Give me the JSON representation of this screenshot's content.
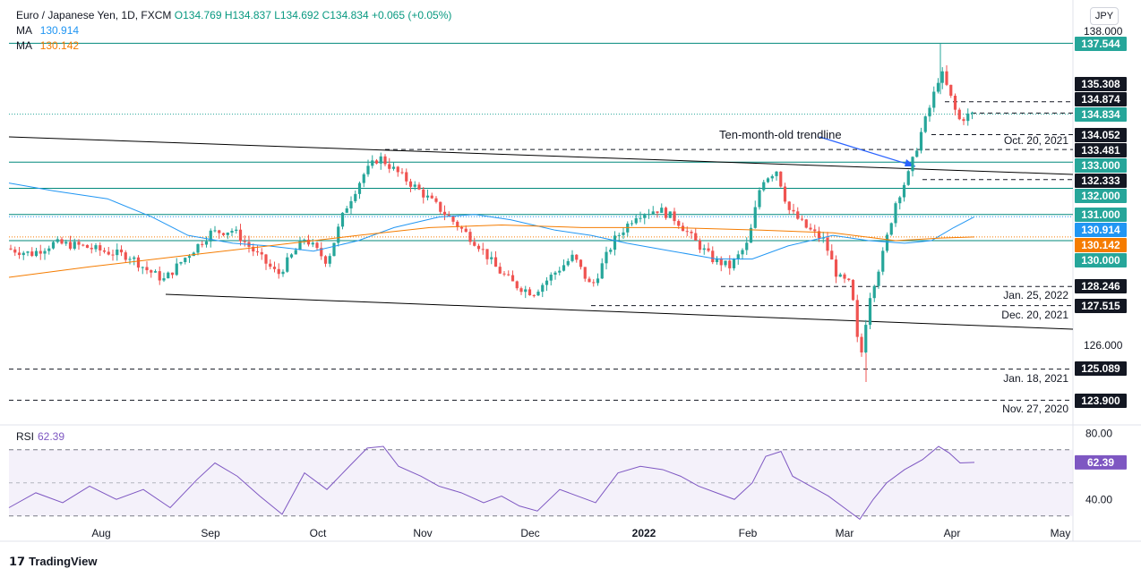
{
  "header": {
    "symbol": "Euro / Japanese Yen, 1D, FXCM",
    "ohlc": "O134.769  H134.837  L134.692  C134.834  +0.065 (+0.05%)",
    "ma1_label": "MA",
    "ma1_value": "130.914",
    "ma2_label": "MA",
    "ma2_value": "130.142"
  },
  "currency": "JPY",
  "brand": "TradingView",
  "colors": {
    "up": "#26a69a",
    "down": "#ef5350",
    "ma_fast": "#2196f3",
    "ma_slow": "#f57c00",
    "rsi": "#7e57c2",
    "hline": "#00897b",
    "trend": "#000000",
    "arrow": "#2962ff"
  },
  "chart_data": [
    {
      "type": "candlestick",
      "y_range": [
        123.3,
        138.3
      ],
      "y_ticks": [
        "138.000",
        "126.000"
      ],
      "x_ticks": [
        "Aug",
        "Sep",
        "Oct",
        "Nov",
        "Dec",
        "2022",
        "Feb",
        "Mar",
        "Apr",
        "May"
      ],
      "last_close": 134.834,
      "ma_fast": {
        "label": "MA",
        "last": 130.914
      },
      "ma_slow": {
        "label": "MA",
        "last": 130.142
      },
      "horizontal_levels_solid": [
        137.544,
        133.0,
        132.0,
        131.0,
        130.0
      ],
      "price_labels": [
        {
          "value": 137.544,
          "text": "137.544",
          "style": "teal"
        },
        {
          "value": 135.308,
          "text": "135.308",
          "style": "dark"
        },
        {
          "value": 134.874,
          "text": "134.874",
          "style": "dark"
        },
        {
          "value": 134.834,
          "text": "134.834",
          "style": "teal"
        },
        {
          "value": 134.052,
          "text": "134.052",
          "style": "dark"
        },
        {
          "value": 133.481,
          "text": "133.481",
          "style": "dark"
        },
        {
          "value": 133.0,
          "text": "133.000",
          "style": "teal"
        },
        {
          "value": 132.333,
          "text": "132.333",
          "style": "dark"
        },
        {
          "value": 132.0,
          "text": "132.000",
          "style": "teal"
        },
        {
          "value": 131.0,
          "text": "131.000",
          "style": "teal"
        },
        {
          "value": 130.914,
          "text": "130.914",
          "style": "blue"
        },
        {
          "value": 130.142,
          "text": "130.142",
          "style": "orange"
        },
        {
          "value": 130.0,
          "text": "130.000",
          "style": "teal"
        },
        {
          "value": 128.246,
          "text": "128.246",
          "style": "dark"
        },
        {
          "value": 127.515,
          "text": "127.515",
          "style": "dark"
        },
        {
          "value": 125.089,
          "text": "125.089",
          "style": "dark"
        },
        {
          "value": 123.9,
          "text": "123.900",
          "style": "dark"
        }
      ],
      "date_annotations": [
        {
          "text": "Oct. 20, 2021",
          "value": 134.052
        },
        {
          "text": "Jan. 25, 2022",
          "value": 128.246
        },
        {
          "text": "Dec. 20, 2021",
          "value": 127.515
        },
        {
          "text": "Jan. 18, 2021",
          "value": 125.089
        },
        {
          "text": "Nov. 27, 2020",
          "value": 123.9
        }
      ],
      "trendline_label": "Ten-month-old trendline"
    },
    {
      "type": "line",
      "name": "RSI",
      "label": "RSI",
      "value": "62.39",
      "last": 62.39,
      "y_ticks": [
        "80.00",
        "40.00"
      ],
      "upper_band": 70,
      "lower_band": 30
    }
  ]
}
